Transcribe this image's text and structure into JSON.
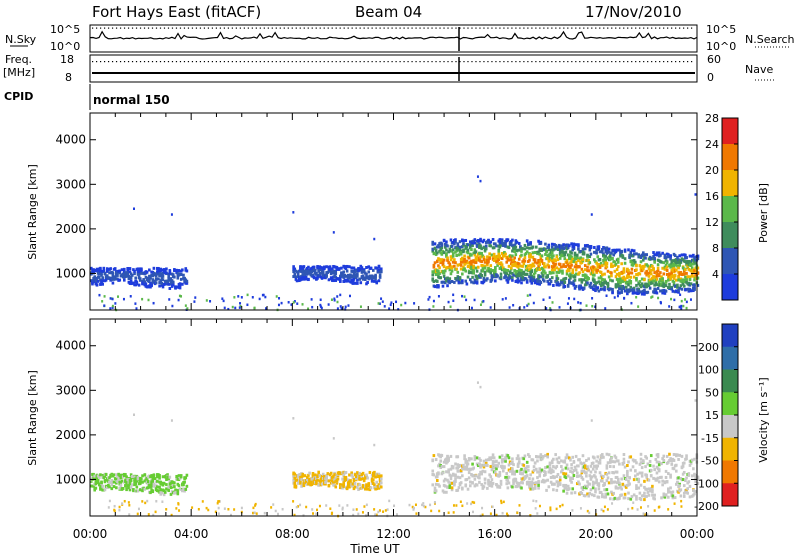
{
  "header": {
    "station": "Fort Hays East (fitACF)",
    "beam": "Beam 04",
    "date": "17/Nov/2010"
  },
  "noise_panel": {
    "left_label": "N.Sky",
    "right_label": "N.Search",
    "tick_high": "10^5",
    "tick_low": "10^0"
  },
  "freq_panel": {
    "left_label": "Freq.",
    "left_unit": "[MHz]",
    "left_tick_high": "18",
    "left_tick_low": "8",
    "right_label": "Nave",
    "right_tick_high": "60",
    "right_tick_low": "0"
  },
  "cpid_panel": {
    "label": "CPID",
    "mode": "normal 150"
  },
  "chart_data": [
    {
      "type": "heatmap",
      "name": "power",
      "ylabel": "Slant Range [km]",
      "yticks": [
        "1000",
        "2000",
        "3000",
        "4000"
      ],
      "ylim": [
        180,
        4600
      ],
      "xlim": [
        0,
        24
      ],
      "colorbar_label": "Power [dB]",
      "colorbar_ticks": [
        "4",
        "8",
        "12",
        "16",
        "20",
        "24",
        "28"
      ],
      "colors": [
        "#1e3cdc",
        "#2f56b4",
        "#3f8c5c",
        "#5bb84a",
        "#f0b400",
        "#f07800",
        "#e02020"
      ],
      "echo_regions": [
        {
          "start_hour": 0.0,
          "end_hour": 3.8,
          "range_km": [
            750,
            1150
          ],
          "level": "weak"
        },
        {
          "start_hour": 8.0,
          "end_hour": 11.5,
          "range_km": [
            850,
            1200
          ],
          "level": "weak"
        },
        {
          "start_hour": 13.5,
          "end_hour": 24.0,
          "range_km": [
            700,
            1600
          ],
          "level": "strong"
        }
      ]
    },
    {
      "type": "heatmap",
      "name": "velocity",
      "ylabel": "Slant Range [km]",
      "yticks": [
        "1000",
        "2000",
        "3000",
        "4000"
      ],
      "ylim": [
        180,
        4600
      ],
      "xlim": [
        0,
        24
      ],
      "colorbar_label": "Velocity [m s⁻¹]",
      "colorbar_ticks": [
        "200",
        "100",
        "50",
        "15",
        "-15",
        "-50",
        "-100",
        "-200"
      ],
      "colors": [
        "#2040c0",
        "#2f6ea8",
        "#3a8a50",
        "#66cc33",
        "#c8c8c8",
        "#f0b400",
        "#f07800",
        "#e02020"
      ],
      "echo_regions": [
        {
          "start_hour": 0.0,
          "end_hour": 3.8,
          "range_km": [
            750,
            1150
          ],
          "velocity": "positive"
        },
        {
          "start_hour": 8.0,
          "end_hour": 11.5,
          "range_km": [
            850,
            1200
          ],
          "velocity": "negative"
        },
        {
          "start_hour": 13.5,
          "end_hour": 24.0,
          "range_km": [
            700,
            1600
          ],
          "velocity": "near-zero"
        }
      ]
    }
  ],
  "x_axis": {
    "ticks": [
      "00:00",
      "04:00",
      "08:00",
      "12:00",
      "16:00",
      "20:00",
      "00:00"
    ],
    "label": "Time UT"
  }
}
